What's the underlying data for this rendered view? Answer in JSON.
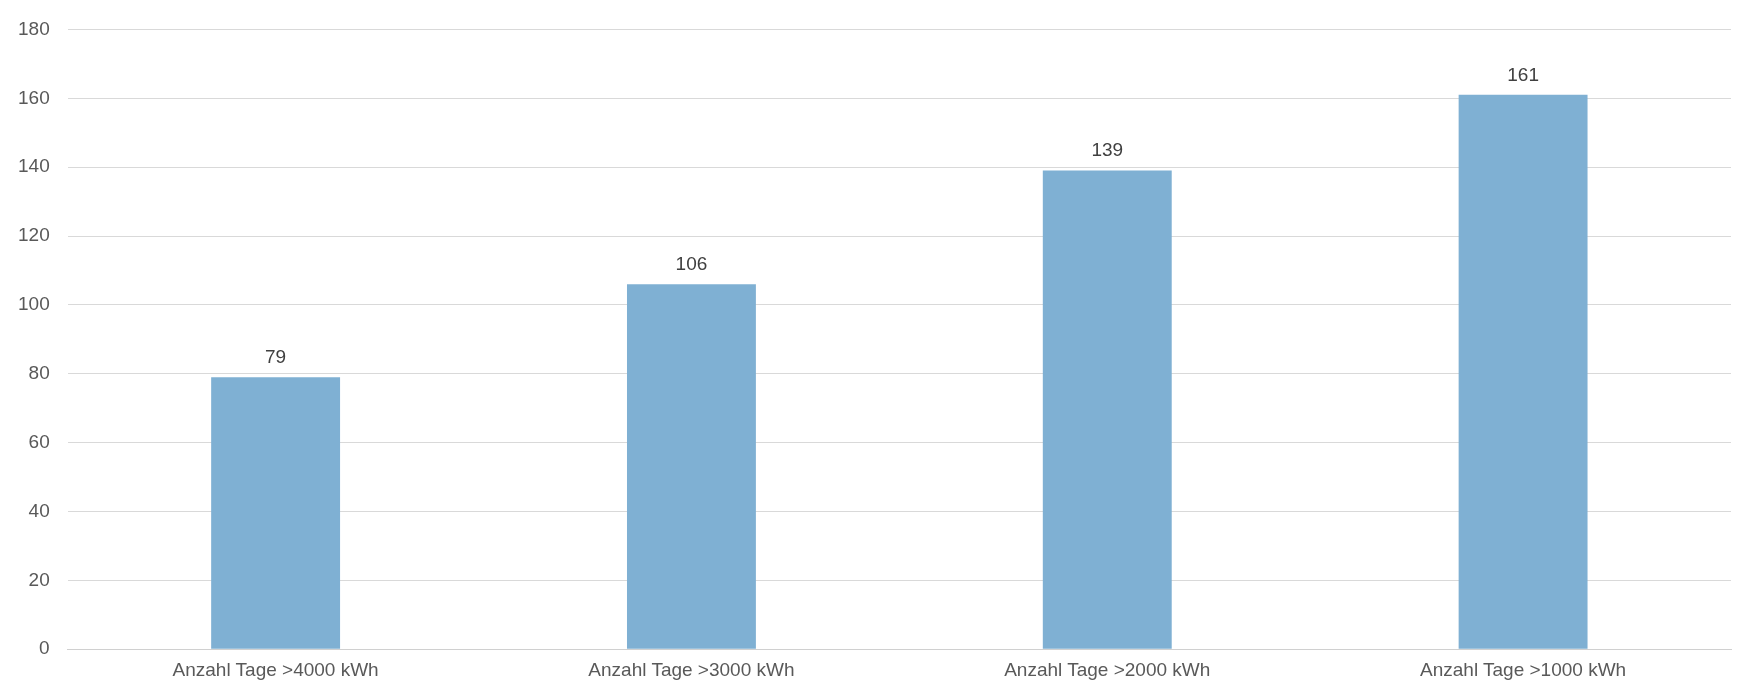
{
  "chart_data": {
    "type": "bar",
    "categories": [
      "Anzahl Tage >4000 kWh",
      "Anzahl Tage >3000 kWh",
      "Anzahl Tage >2000 kWh",
      "Anzahl Tage >1000 kWh"
    ],
    "values": [
      79,
      106,
      139,
      161
    ],
    "color": "#7fb0d3",
    "ylim": [
      0,
      180
    ],
    "yticks": [
      0,
      20,
      40,
      60,
      80,
      100,
      120,
      140,
      160,
      180
    ],
    "grid": "y",
    "legend": false,
    "data_labels": true
  }
}
